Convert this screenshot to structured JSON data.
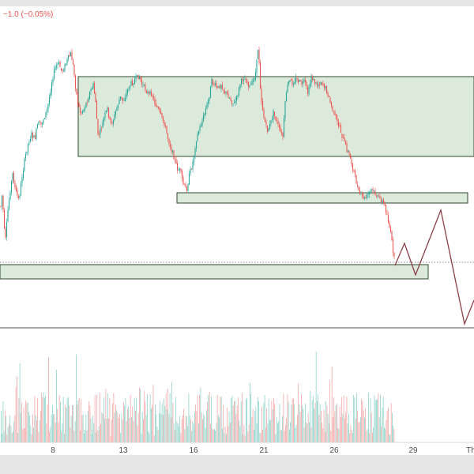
{
  "header": {
    "change_text": "−1.0 (−0.05%)"
  },
  "chart_data": {
    "type": "candlestick",
    "price_units": "unlabeled",
    "colors": {
      "up": "#26a69a",
      "down": "#ef5350",
      "zone_fill": "#dbeadb",
      "zone_stroke": "#2e4a2e",
      "projection": "#8d3f46",
      "baseline": "#555555",
      "dotted_level": "#8a8a8a",
      "volume_up": "#8fd3c9",
      "volume_down": "#f2a7a6"
    },
    "x_axis": {
      "ticks": [
        {
          "label": "8",
          "t": 67
        },
        {
          "label": "13",
          "t": 156
        },
        {
          "label": "16",
          "t": 245
        },
        {
          "label": "21",
          "t": 334
        },
        {
          "label": "26",
          "t": 423
        },
        {
          "label": "29",
          "t": 523
        },
        {
          "label": "Th",
          "t": 596
        }
      ],
      "range": [
        0,
        600
      ]
    },
    "y_range": [
      0,
      380
    ],
    "price_path": [
      [
        0,
        262
      ],
      [
        3,
        235
      ],
      [
        5,
        280
      ],
      [
        7,
        295
      ],
      [
        10,
        258
      ],
      [
        13,
        232
      ],
      [
        16,
        212
      ],
      [
        20,
        235
      ],
      [
        24,
        245
      ],
      [
        28,
        215
      ],
      [
        32,
        190
      ],
      [
        36,
        172
      ],
      [
        40,
        162
      ],
      [
        44,
        168
      ],
      [
        48,
        148
      ],
      [
        52,
        150
      ],
      [
        56,
        140
      ],
      [
        60,
        130
      ],
      [
        63,
        112
      ],
      [
        66,
        92
      ],
      [
        70,
        78
      ],
      [
        74,
        72
      ],
      [
        78,
        82
      ],
      [
        82,
        76
      ],
      [
        86,
        66
      ],
      [
        90,
        60
      ],
      [
        93,
        78
      ],
      [
        96,
        105
      ],
      [
        99,
        125
      ],
      [
        102,
        135
      ],
      [
        106,
        130
      ],
      [
        110,
        120
      ],
      [
        114,
        108
      ],
      [
        118,
        100
      ],
      [
        121,
        120
      ],
      [
        124,
        165
      ],
      [
        128,
        155
      ],
      [
        132,
        140
      ],
      [
        136,
        130
      ],
      [
        140,
        150
      ],
      [
        144,
        142
      ],
      [
        148,
        128
      ],
      [
        152,
        115
      ],
      [
        156,
        120
      ],
      [
        160,
        110
      ],
      [
        164,
        100
      ],
      [
        168,
        96
      ],
      [
        172,
        92
      ],
      [
        176,
        88
      ],
      [
        180,
        100
      ],
      [
        184,
        104
      ],
      [
        188,
        112
      ],
      [
        192,
        110
      ],
      [
        196,
        122
      ],
      [
        200,
        130
      ],
      [
        204,
        140
      ],
      [
        208,
        148
      ],
      [
        212,
        165
      ],
      [
        216,
        178
      ],
      [
        220,
        190
      ],
      [
        224,
        205
      ],
      [
        228,
        208
      ],
      [
        232,
        225
      ],
      [
        236,
        233
      ],
      [
        240,
        212
      ],
      [
        244,
        198
      ],
      [
        248,
        170
      ],
      [
        252,
        156
      ],
      [
        256,
        145
      ],
      [
        260,
        132
      ],
      [
        264,
        118
      ],
      [
        268,
        95
      ],
      [
        272,
        100
      ],
      [
        276,
        105
      ],
      [
        280,
        98
      ],
      [
        284,
        108
      ],
      [
        288,
        112
      ],
      [
        292,
        118
      ],
      [
        296,
        124
      ],
      [
        300,
        115
      ],
      [
        304,
        98
      ],
      [
        308,
        90
      ],
      [
        312,
        94
      ],
      [
        316,
        102
      ],
      [
        320,
        96
      ],
      [
        324,
        82
      ],
      [
        327,
        48
      ],
      [
        330,
        112
      ],
      [
        334,
        140
      ],
      [
        338,
        158
      ],
      [
        342,
        150
      ],
      [
        346,
        135
      ],
      [
        350,
        145
      ],
      [
        354,
        158
      ],
      [
        358,
        165
      ],
      [
        362,
        110
      ],
      [
        366,
        94
      ],
      [
        370,
        97
      ],
      [
        374,
        92
      ],
      [
        378,
        95
      ],
      [
        382,
        98
      ],
      [
        386,
        96
      ],
      [
        390,
        112
      ],
      [
        394,
        88
      ],
      [
        398,
        96
      ],
      [
        402,
        100
      ],
      [
        406,
        95
      ],
      [
        410,
        100
      ],
      [
        414,
        108
      ],
      [
        418,
        122
      ],
      [
        422,
        134
      ],
      [
        426,
        146
      ],
      [
        430,
        152
      ],
      [
        434,
        168
      ],
      [
        438,
        178
      ],
      [
        442,
        188
      ],
      [
        446,
        202
      ],
      [
        450,
        218
      ],
      [
        454,
        236
      ],
      [
        458,
        240
      ],
      [
        462,
        244
      ],
      [
        466,
        238
      ],
      [
        470,
        232
      ],
      [
        474,
        236
      ],
      [
        478,
        242
      ],
      [
        482,
        244
      ],
      [
        486,
        250
      ],
      [
        490,
        264
      ],
      [
        494,
        285
      ],
      [
        497,
        305
      ],
      [
        499,
        320
      ]
    ],
    "projection": [
      [
        500,
        328
      ],
      [
        512,
        300
      ],
      [
        526,
        340
      ],
      [
        558,
        258
      ],
      [
        588,
        402
      ],
      [
        600,
        372
      ]
    ],
    "zones": [
      {
        "x0": 99,
        "x1": 600,
        "y0": 89,
        "y1": 190
      },
      {
        "x0": 224,
        "x1": 592,
        "y0": 236,
        "y1": 249
      },
      {
        "x0": 0,
        "x1": 542,
        "y0": 327,
        "y1": 345
      }
    ],
    "dotted_level": 324,
    "baseline": 407,
    "volume": {
      "x_start": 0,
      "x_end": 499,
      "spacing": 1.25,
      "max_height": 135
    },
    "grid": false,
    "legend": "none"
  }
}
